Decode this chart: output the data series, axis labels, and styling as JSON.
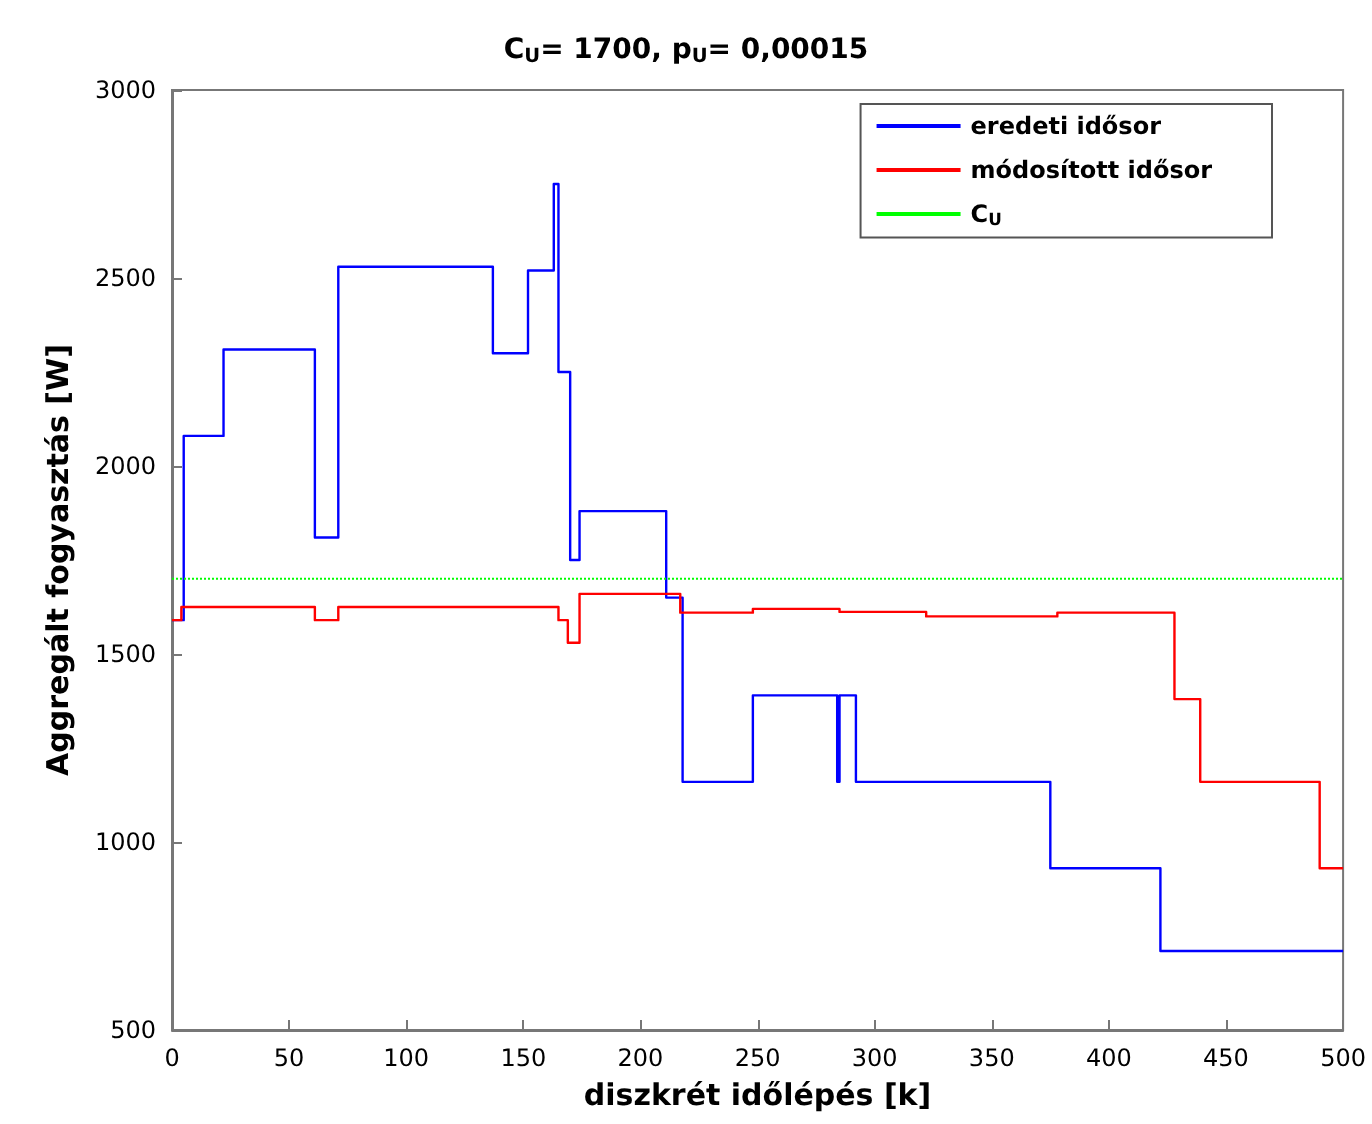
{
  "chart_data": {
    "type": "step",
    "title": "C$_{U}$= 1700, p$_{U}$= 0,00015",
    "xlabel": "diszkrét időlépés [k]",
    "ylabel": "Aggregált fogyasztás [W]",
    "series": [
      {
        "name": "eredeti idősor",
        "color": "#0000ff",
        "x": [
          0,
          5,
          22,
          61,
          71,
          137,
          152,
          163,
          165,
          170,
          174,
          211,
          218,
          248,
          284,
          285,
          292,
          375,
          422,
          500
        ],
        "values": [
          1590,
          2080,
          2310,
          1810,
          2530,
          2300,
          2520,
          2750,
          2250,
          1750,
          1880,
          1650,
          1160,
          1390,
          1160,
          1390,
          1160,
          930,
          710,
          710
        ]
      },
      {
        "name": "módosított idősor",
        "color": "#ff0000",
        "x": [
          0,
          4,
          61,
          71,
          165,
          169,
          174,
          217,
          248,
          285,
          322,
          378,
          428,
          439,
          490,
          500
        ],
        "values": [
          1590,
          1625,
          1590,
          1625,
          1590,
          1530,
          1660,
          1610,
          1620,
          1612,
          1600,
          1610,
          1380,
          1160,
          930,
          930
        ]
      },
      {
        "name": "C$_{U}$",
        "type": "line",
        "color": "#00ff00",
        "line_style": "dotted",
        "x": [
          0,
          500
        ],
        "values": [
          1700,
          1700
        ]
      }
    ],
    "xlim": [
      0,
      500
    ],
    "xticks": [
      0,
      50,
      100,
      150,
      200,
      250,
      300,
      350,
      400,
      450,
      500
    ],
    "ylim": [
      500,
      3000
    ],
    "yticks": [
      500,
      1000,
      1500,
      2000,
      2500,
      3000
    ],
    "legend": "top right",
    "grid": false,
    "marker": "none"
  }
}
